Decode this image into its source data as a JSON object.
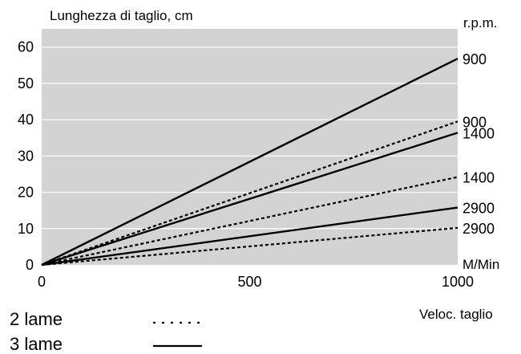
{
  "chart_data": {
    "type": "line",
    "title": "Lunghezza di taglio, cm",
    "right_header": "r.p.m.",
    "x_unit": "M/Min",
    "xlabel": "Veloc. taglio",
    "xlim": [
      0,
      1000
    ],
    "ylim": [
      0,
      65
    ],
    "x_ticks": [
      "0",
      "500",
      "1000"
    ],
    "y_ticks": [
      "0",
      "10",
      "20",
      "30",
      "40",
      "50",
      "60"
    ],
    "grid": true,
    "background_color": "#d3d3d3",
    "series": [
      {
        "label": "900",
        "blades": 3,
        "style": "solid",
        "x": [
          0,
          1000
        ],
        "y": [
          0,
          56.8
        ]
      },
      {
        "label": "900",
        "blades": 2,
        "style": "dotted",
        "x": [
          0,
          1000
        ],
        "y": [
          0,
          39.5
        ]
      },
      {
        "label": "1400",
        "blades": 3,
        "style": "solid",
        "x": [
          0,
          1000
        ],
        "y": [
          0,
          36.4
        ]
      },
      {
        "label": "1400",
        "blades": 2,
        "style": "dotted",
        "x": [
          0,
          1000
        ],
        "y": [
          0,
          24.2
        ]
      },
      {
        "label": "2900",
        "blades": 3,
        "style": "solid",
        "x": [
          0,
          1000
        ],
        "y": [
          0,
          15.8
        ]
      },
      {
        "label": "2900",
        "blades": 2,
        "style": "dotted",
        "x": [
          0,
          1000
        ],
        "y": [
          0,
          10.2
        ]
      }
    ],
    "legend": [
      {
        "label": "2 lame",
        "style": "dotted"
      },
      {
        "label": "3 lame",
        "style": "solid"
      }
    ]
  }
}
